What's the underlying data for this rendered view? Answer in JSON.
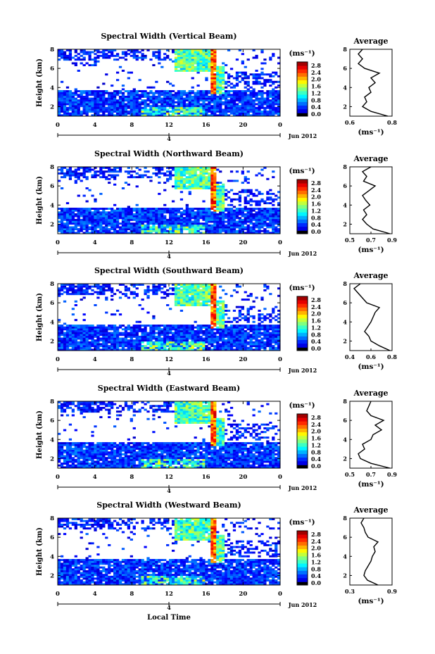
{
  "figure": {
    "xlabel": "Local Time",
    "date_label": "Jun 2012",
    "day_marker": "4",
    "colorbar_unit": "(ms⁻¹)",
    "average_title": "Average",
    "average_unit": "(ms⁻¹)"
  },
  "chart_data": [
    {
      "type": "heatmap",
      "title": "Spectral Width (Vertical Beam)",
      "ylabel": "Height (km)",
      "xlim": [
        0,
        24
      ],
      "ylim": [
        1,
        8
      ],
      "xticks": [
        "0",
        "4",
        "8",
        "12",
        "16",
        "20",
        "0"
      ],
      "yticks": [
        "2",
        "4",
        "6",
        "8"
      ],
      "colorbar": {
        "ticks": [
          "0.0",
          "0.4",
          "0.8",
          "1.2",
          "1.6",
          "2.0",
          "2.4",
          "2.8"
        ],
        "range": [
          0,
          3.0
        ]
      },
      "average_profile": {
        "xlim": [
          0.6,
          0.8
        ],
        "xticks": [
          "0.6",
          "0.8"
        ],
        "yticks": [
          "2",
          "4",
          "6",
          "8"
        ],
        "height_km": [
          1.0,
          1.5,
          2.0,
          2.5,
          3.0,
          3.5,
          4.0,
          4.5,
          5.0,
          5.5,
          6.0,
          6.5,
          7.0,
          7.5,
          8.0
        ],
        "value": [
          0.78,
          0.7,
          0.66,
          0.68,
          0.67,
          0.7,
          0.69,
          0.72,
          0.7,
          0.74,
          0.67,
          0.64,
          0.66,
          0.64,
          0.66
        ]
      }
    },
    {
      "type": "heatmap",
      "title": "Spectral Width (Northward Beam)",
      "ylabel": "Height (km)",
      "xlim": [
        0,
        24
      ],
      "ylim": [
        1,
        8
      ],
      "xticks": [
        "0",
        "4",
        "8",
        "12",
        "16",
        "20",
        "0"
      ],
      "yticks": [
        "2",
        "4",
        "6",
        "8"
      ],
      "colorbar": {
        "ticks": [
          "0.0",
          "0.4",
          "0.8",
          "1.2",
          "1.6",
          "2.0",
          "2.4",
          "2.8"
        ],
        "range": [
          0,
          3.0
        ]
      },
      "average_profile": {
        "xlim": [
          0.5,
          0.9
        ],
        "xticks": [
          "0.5",
          "0.7",
          "0.9"
        ],
        "yticks": [
          "2",
          "4",
          "6",
          "8"
        ],
        "height_km": [
          1.0,
          1.5,
          2.0,
          2.5,
          3.0,
          3.5,
          4.0,
          4.5,
          5.0,
          5.5,
          6.0,
          6.5,
          7.0,
          7.5,
          8.0
        ],
        "value": [
          0.88,
          0.72,
          0.66,
          0.62,
          0.66,
          0.63,
          0.69,
          0.65,
          0.62,
          0.68,
          0.74,
          0.63,
          0.66,
          0.62,
          0.7
        ]
      }
    },
    {
      "type": "heatmap",
      "title": "Spectral Width (Southward Beam)",
      "ylabel": "Height (km)",
      "xlim": [
        0,
        24
      ],
      "ylim": [
        1,
        8
      ],
      "xticks": [
        "0",
        "4",
        "8",
        "12",
        "16",
        "20",
        "0"
      ],
      "yticks": [
        "2",
        "4",
        "6",
        "8"
      ],
      "colorbar": {
        "ticks": [
          "0.0",
          "0.4",
          "0.8",
          "1.2",
          "1.6",
          "2.0",
          "2.4",
          "2.8"
        ],
        "range": [
          0,
          3.0
        ]
      },
      "average_profile": {
        "xlim": [
          0.4,
          0.8
        ],
        "xticks": [
          "0.4",
          "0.6",
          "0.8"
        ],
        "yticks": [
          "2",
          "4",
          "6",
          "8"
        ],
        "height_km": [
          1.0,
          1.5,
          2.0,
          2.5,
          3.0,
          3.5,
          4.0,
          4.5,
          5.0,
          5.5,
          6.0,
          6.5,
          7.0,
          7.5,
          8.0
        ],
        "value": [
          0.78,
          0.68,
          0.6,
          0.58,
          0.54,
          0.57,
          0.6,
          0.62,
          0.64,
          0.68,
          0.56,
          0.52,
          0.48,
          0.44,
          0.5
        ]
      }
    },
    {
      "type": "heatmap",
      "title": "Spectral Width (Eastward Beam)",
      "ylabel": "Height (km)",
      "xlim": [
        0,
        24
      ],
      "ylim": [
        1,
        8
      ],
      "xticks": [
        "0",
        "4",
        "8",
        "12",
        "16",
        "20",
        "0"
      ],
      "yticks": [
        "2",
        "4",
        "6",
        "8"
      ],
      "colorbar": {
        "ticks": [
          "0.0",
          "0.4",
          "0.8",
          "1.2",
          "1.6",
          "2.0",
          "2.4",
          "2.8"
        ],
        "range": [
          0,
          3.0
        ]
      },
      "average_profile": {
        "xlim": [
          0.5,
          0.9
        ],
        "xticks": [
          "0.5",
          "0.7",
          "0.9"
        ],
        "yticks": [
          "2",
          "4",
          "6",
          "8"
        ],
        "height_km": [
          1.0,
          1.5,
          2.0,
          2.5,
          3.0,
          3.5,
          4.0,
          4.5,
          5.0,
          5.5,
          6.0,
          6.5,
          7.0,
          7.5,
          8.0
        ],
        "value": [
          0.88,
          0.7,
          0.6,
          0.58,
          0.64,
          0.62,
          0.7,
          0.72,
          0.8,
          0.74,
          0.82,
          0.7,
          0.66,
          0.68,
          0.7
        ]
      }
    },
    {
      "type": "heatmap",
      "title": "Spectral Width (Westward Beam)",
      "ylabel": "Height (km)",
      "xlim": [
        0,
        24
      ],
      "ylim": [
        1,
        8
      ],
      "xticks": [
        "0",
        "4",
        "8",
        "12",
        "16",
        "20",
        "0"
      ],
      "yticks": [
        "2",
        "4",
        "6",
        "8"
      ],
      "colorbar": {
        "ticks": [
          "0.0",
          "0.4",
          "0.8",
          "1.2",
          "1.6",
          "2.0",
          "2.4",
          "2.8"
        ],
        "range": [
          0,
          3.0
        ]
      },
      "average_profile": {
        "xlim": [
          0.3,
          0.9
        ],
        "xticks": [
          "0.3",
          "0.9"
        ],
        "yticks": [
          "2",
          "4",
          "6",
          "8"
        ],
        "height_km": [
          1.0,
          1.5,
          2.0,
          2.5,
          3.0,
          3.5,
          4.0,
          4.5,
          5.0,
          5.5,
          6.0,
          6.5,
          7.0,
          7.5,
          8.0
        ],
        "value": [
          0.7,
          0.55,
          0.5,
          0.52,
          0.56,
          0.6,
          0.62,
          0.66,
          0.64,
          0.7,
          0.56,
          0.52,
          0.5,
          0.46,
          0.5
        ]
      }
    }
  ]
}
